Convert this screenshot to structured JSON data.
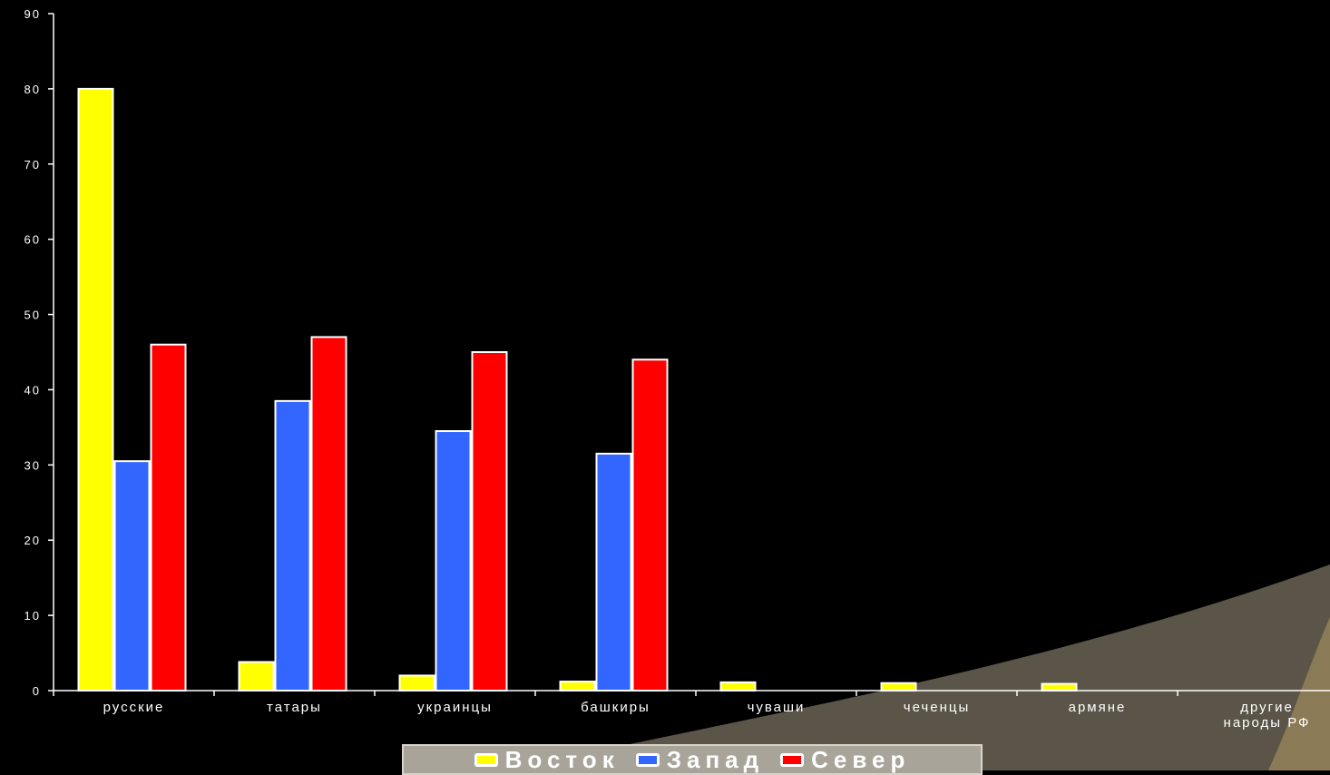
{
  "chart_data": {
    "type": "bar",
    "categories": [
      "русские",
      "татары",
      "украинцы",
      "башкиры",
      "чуваши",
      "чеченцы",
      "армяне",
      "другие народы РФ"
    ],
    "series": [
      {
        "name": "Восток",
        "color": "#ffff00",
        "values": [
          80,
          3.8,
          2,
          1.2,
          1.1,
          1,
          0.9,
          null
        ]
      },
      {
        "name": "Запад",
        "color": "#3366ff",
        "values": [
          30.5,
          38.5,
          34.5,
          31.5,
          null,
          null,
          null,
          null
        ]
      },
      {
        "name": "Север",
        "color": "#ff0000",
        "values": [
          46,
          47,
          45,
          44,
          null,
          null,
          null,
          null
        ]
      }
    ],
    "ylim": [
      0,
      90
    ],
    "yticks": [
      0,
      10,
      20,
      30,
      40,
      50,
      60,
      70,
      80,
      90
    ],
    "grid": false,
    "legend_position": "bottom"
  }
}
